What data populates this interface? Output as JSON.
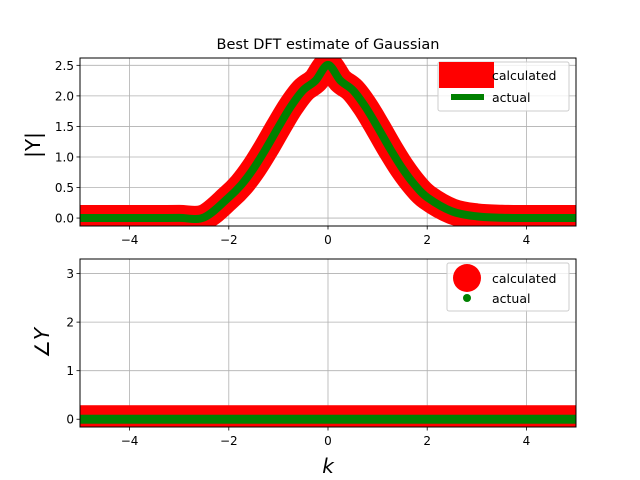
{
  "title": "Best DFT estimate of Gaussian",
  "colors": {
    "calculated": "#ff0000",
    "actual": "#008000",
    "grid": "#b0b0b0"
  },
  "chart_data": [
    {
      "type": "line",
      "xlim": [
        -5,
        5
      ],
      "ylim": [
        -0.13,
        2.62
      ],
      "xticks": [
        -4,
        -2,
        0,
        2,
        4
      ],
      "yticks": [
        0.0,
        0.5,
        1.0,
        1.5,
        2.0,
        2.5
      ],
      "xtick_labels": [
        "−4",
        "−2",
        "0",
        "2",
        "4"
      ],
      "ytick_labels": [
        "0.0",
        "0.5",
        "1.0",
        "1.5",
        "2.0",
        "2.5"
      ],
      "ylabel": "|Y|",
      "xlabel": "",
      "grid": true,
      "legend_position": "upper right",
      "x": [
        -5,
        -4.5,
        -4,
        -3.5,
        -3,
        -2.5,
        -2,
        -1.75,
        -1.5,
        -1.25,
        -1,
        -0.75,
        -0.5,
        -0.25,
        0,
        0.25,
        0.5,
        0.75,
        1,
        1.25,
        1.5,
        1.75,
        2,
        2.5,
        3,
        3.5,
        4,
        4.5,
        5
      ],
      "series": [
        {
          "name": "calculated",
          "style": "line",
          "values": [
            0,
            0,
            0,
            0.0003,
            0.0028,
            0.011,
            0.3392,
            0.5424,
            0.8117,
            1.1364,
            1.4887,
            1.825,
            2.0944,
            2.2505,
            2.5066,
            2.2505,
            2.0944,
            1.825,
            1.4887,
            1.1364,
            0.8117,
            0.5424,
            0.3392,
            0.11,
            0.0278,
            0.0055,
            0.0008,
            0.0001,
            0
          ]
        },
        {
          "name": "actual",
          "style": "line",
          "values": [
            0,
            0,
            0,
            0.0003,
            0.0028,
            0.011,
            0.3392,
            0.5424,
            0.8117,
            1.1364,
            1.4887,
            1.825,
            2.0944,
            2.2505,
            2.5066,
            2.2505,
            2.0944,
            1.825,
            1.4887,
            1.1364,
            0.8117,
            0.5424,
            0.3392,
            0.11,
            0.0278,
            0.0055,
            0.0008,
            0.0001,
            0
          ]
        }
      ]
    },
    {
      "type": "scatter",
      "xlim": [
        -5,
        5
      ],
      "ylim": [
        -0.16,
        3.3
      ],
      "xticks": [
        -4,
        -2,
        0,
        2,
        4
      ],
      "yticks": [
        0,
        1,
        2,
        3
      ],
      "xtick_labels": [
        "−4",
        "−2",
        "0",
        "2",
        "4"
      ],
      "ytick_labels": [
        "0",
        "1",
        "2",
        "3"
      ],
      "ylabel": "∠Y",
      "xlabel": "k",
      "grid": true,
      "legend_position": "upper right",
      "x": [
        -5,
        5
      ],
      "series": [
        {
          "name": "calculated",
          "style": "markers",
          "values": [
            0,
            0
          ]
        },
        {
          "name": "actual",
          "style": "markers",
          "values": [
            0,
            0
          ]
        }
      ]
    }
  ]
}
